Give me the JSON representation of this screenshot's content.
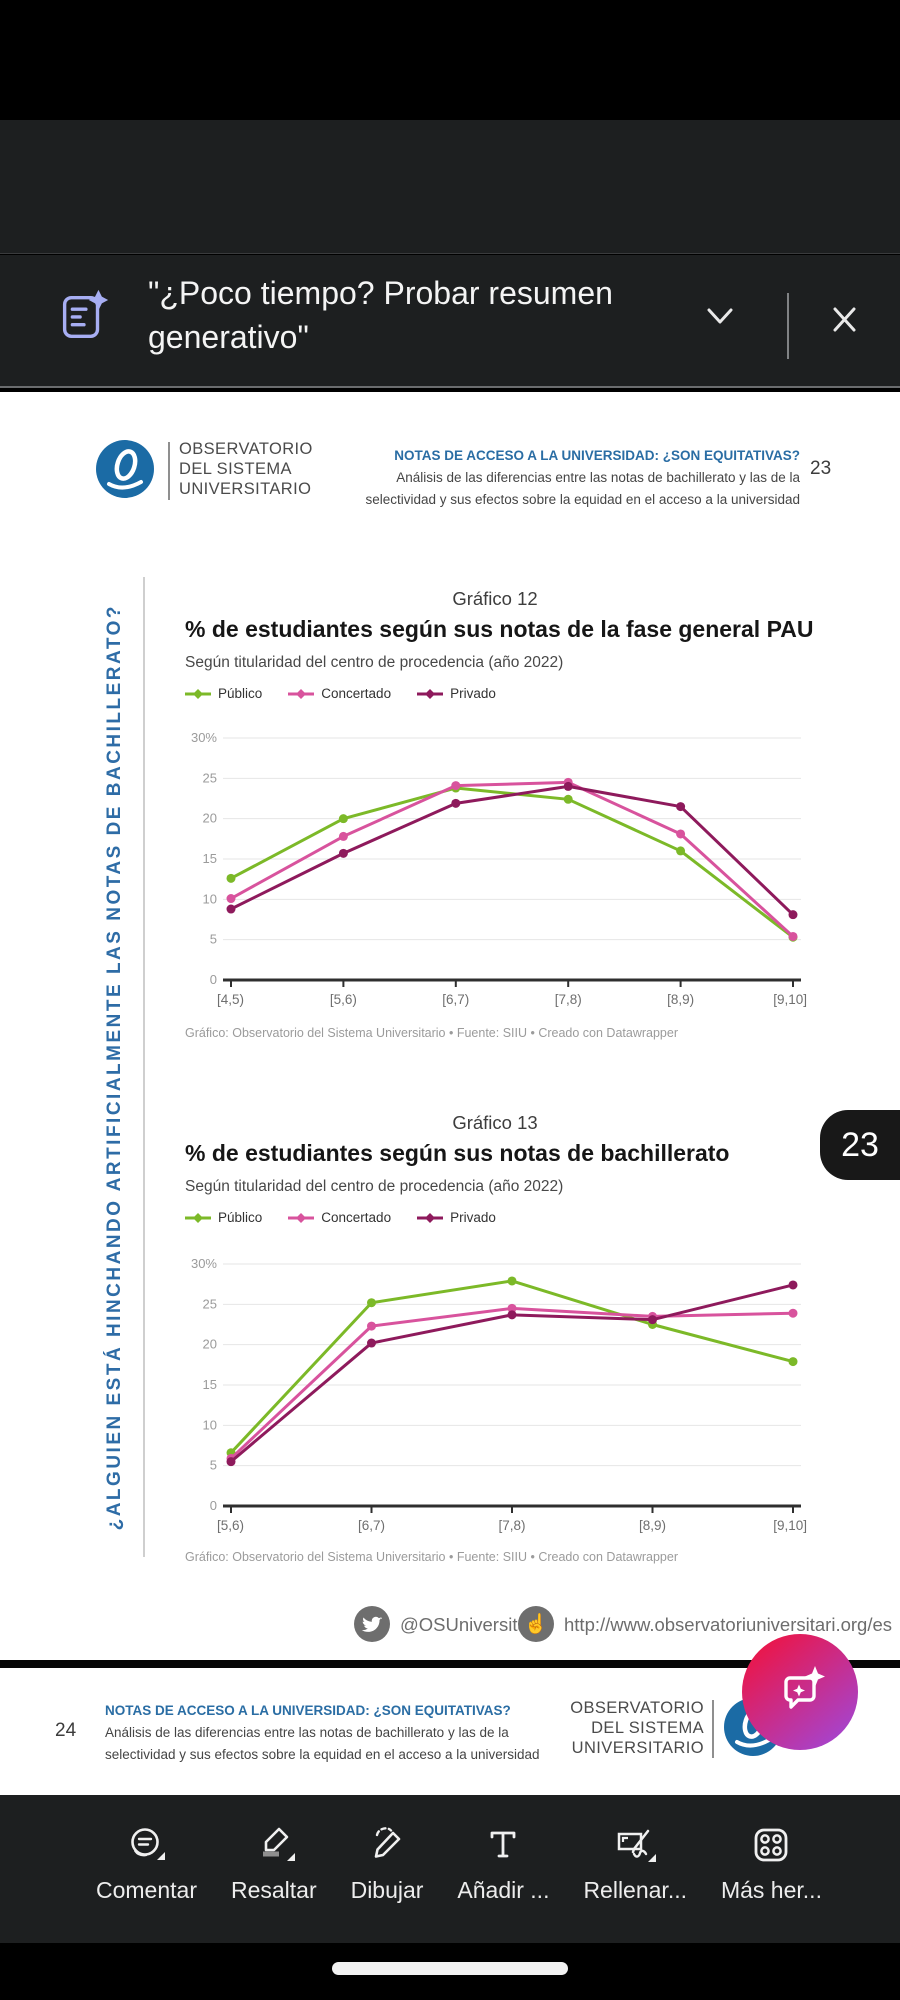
{
  "top_toolbar": {
    "icons": [
      "back-arrow",
      "liquid-mode",
      "comments",
      "search",
      "share",
      "overflow-menu"
    ]
  },
  "banner": {
    "icon": "generative-summary-document-sparkle",
    "text": "\"¿Poco tiempo? Probar resumen generativo\""
  },
  "page23": {
    "page_number": "23",
    "org_name_lines": [
      "OBSERVATORIO",
      "DEL SISTEMA",
      "UNIVERSITARIO"
    ],
    "doc_title": "NOTAS DE ACCESO A LA UNIVERSIDAD: ¿SON EQUITATIVAS?",
    "doc_subtitle_line1": "Análisis de las diferencias entre las notas de bachillerato y las de la",
    "doc_subtitle_line2": "selectividad y sus efectos sobre la equidad en el acceso a la universidad",
    "margin_question": "¿ALGUIEN ESTÁ HINCHANDO ARTIFICIALMENTE LAS NOTAS DE BACHILLERATO?",
    "twitter_handle": "@OSUniversitari",
    "website_url": "http://www.observatoriuniversitari.org/es"
  },
  "page24": {
    "page_number": "24",
    "org_name_lines": [
      "OBSERVATORIO",
      "DEL SISTEMA",
      "UNIVERSITARIO"
    ],
    "doc_title": "NOTAS DE ACCESO A LA UNIVERSIDAD: ¿SON EQUITATIVAS?",
    "doc_subtitle_line1": "Análisis de las diferencias entre las notas de bachillerato y las de la",
    "doc_subtitle_line2": "selectividad y sus efectos sobre la equidad en el acceso a la universidad"
  },
  "page_badge": "23",
  "chart_data": [
    {
      "type": "line",
      "kicker": "Gráfico 12",
      "title": "% de estudiantes según sus notas de la fase general PAU",
      "subtitle": "Según titularidad del centro de procedencia (año 2022)",
      "categories": [
        "[4,5)",
        "[5,6)",
        "[6,7)",
        "[7,8)",
        "[8,9)",
        "[9,10]"
      ],
      "series": [
        {
          "name": "Público",
          "color": "#7CB928",
          "values": [
            12.6,
            20.0,
            23.8,
            22.4,
            16.0,
            5.3
          ]
        },
        {
          "name": "Concertado",
          "color": "#D8539D",
          "values": [
            10.1,
            17.8,
            24.1,
            24.5,
            18.1,
            5.4
          ]
        },
        {
          "name": "Privado",
          "color": "#8E1A5C",
          "values": [
            8.8,
            15.7,
            21.9,
            24.0,
            21.5,
            8.1
          ]
        }
      ],
      "xlabel": "",
      "ylabel": "",
      "ylim": [
        0,
        30
      ],
      "yticks": [
        0,
        5,
        10,
        15,
        20,
        25,
        30
      ],
      "ytick_top_suffix": "%",
      "grid": true,
      "legend_position": "top",
      "footer": "Gráfico: Observatorio del Sistema Universitario • Fuente: SIIU • Creado con Datawrapper"
    },
    {
      "type": "line",
      "kicker": "Gráfico 13",
      "title": "% de estudiantes según sus notas de bachillerato",
      "subtitle": "Según titularidad del centro de procedencia (año 2022)",
      "categories": [
        "[5,6)",
        "[6,7)",
        "[7,8)",
        "[8,9)",
        "[9,10]"
      ],
      "series": [
        {
          "name": "Público",
          "color": "#7CB928",
          "values": [
            6.6,
            25.2,
            27.9,
            22.5,
            17.9
          ]
        },
        {
          "name": "Concertado",
          "color": "#D8539D",
          "values": [
            5.9,
            22.3,
            24.5,
            23.5,
            23.9
          ]
        },
        {
          "name": "Privado",
          "color": "#8E1A5C",
          "values": [
            5.5,
            20.2,
            23.7,
            23.1,
            27.4
          ]
        }
      ],
      "xlabel": "",
      "ylabel": "",
      "ylim": [
        0,
        30
      ],
      "yticks": [
        0,
        5,
        10,
        15,
        20,
        25,
        30
      ],
      "ytick_top_suffix": "%",
      "grid": true,
      "legend_position": "top",
      "footer": "Gráfico: Observatorio del Sistema Universitario • Fuente: SIIU • Creado con Datawrapper"
    }
  ],
  "bottom_toolbar": {
    "items": [
      {
        "label": "Comentar",
        "icon": "comment"
      },
      {
        "label": "Resaltar",
        "icon": "highlighter"
      },
      {
        "label": "Dibujar",
        "icon": "draw-pencil"
      },
      {
        "label": "Añadir ...",
        "icon": "add-text"
      },
      {
        "label": "Rellenar...",
        "icon": "fill-and-sign"
      },
      {
        "label": "Más her...",
        "icon": "more-tools"
      }
    ]
  },
  "colors": {
    "chrome_bg": "#1d1f20",
    "accent_blue": "#2a6da4",
    "fab_gradient_start": "#e8184e",
    "fab_gradient_end": "#a544cf",
    "banner_icon": "#a7aef3"
  }
}
